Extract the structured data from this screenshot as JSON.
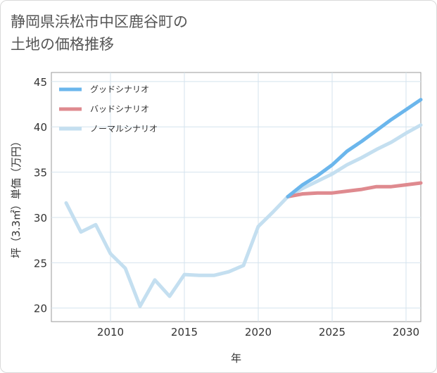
{
  "title": {
    "line1": "静岡県浜松市中区鹿谷町の",
    "line2": "土地の価格推移"
  },
  "chart_data": {
    "type": "line",
    "xlabel": "年",
    "ylabel": "坪（3.3㎡）単価（万円）",
    "xlim": [
      2006.0,
      2031.0
    ],
    "ylim": [
      18.5,
      46.0
    ],
    "xticks": [
      2010,
      2015,
      2020,
      2025,
      2030
    ],
    "yticks": [
      20,
      25,
      30,
      35,
      40,
      45
    ],
    "legend_position": "top-left",
    "series": [
      {
        "name": "グッドシナリオ",
        "color": "#6bb6ec",
        "x": [
          2022,
          2023,
          2024,
          2025,
          2026,
          2027,
          2028,
          2029,
          2030,
          2031
        ],
        "values": [
          32.3,
          33.6,
          34.6,
          35.8,
          37.3,
          38.4,
          39.6,
          40.8,
          41.9,
          43.0
        ]
      },
      {
        "name": "バッドシナリオ",
        "color": "#df8a8f",
        "x": [
          2022,
          2023,
          2024,
          2025,
          2026,
          2027,
          2028,
          2029,
          2030,
          2031
        ],
        "values": [
          32.3,
          32.6,
          32.7,
          32.7,
          32.9,
          33.1,
          33.4,
          33.4,
          33.6,
          33.8
        ]
      },
      {
        "name": "ノーマルシナリオ",
        "color": "#c4dff0",
        "x": [
          2007,
          2008,
          2009,
          2010,
          2011,
          2012,
          2013,
          2014,
          2015,
          2016,
          2017,
          2018,
          2019,
          2020,
          2021,
          2022,
          2023,
          2024,
          2025,
          2026,
          2027,
          2028,
          2029,
          2030,
          2031
        ],
        "values": [
          31.6,
          28.4,
          29.2,
          26.0,
          24.4,
          20.2,
          23.1,
          21.3,
          23.7,
          23.6,
          23.6,
          24.0,
          24.7,
          29.0,
          30.6,
          32.3,
          33.2,
          34.0,
          34.8,
          35.8,
          36.6,
          37.5,
          38.3,
          39.3,
          40.2
        ]
      }
    ]
  }
}
